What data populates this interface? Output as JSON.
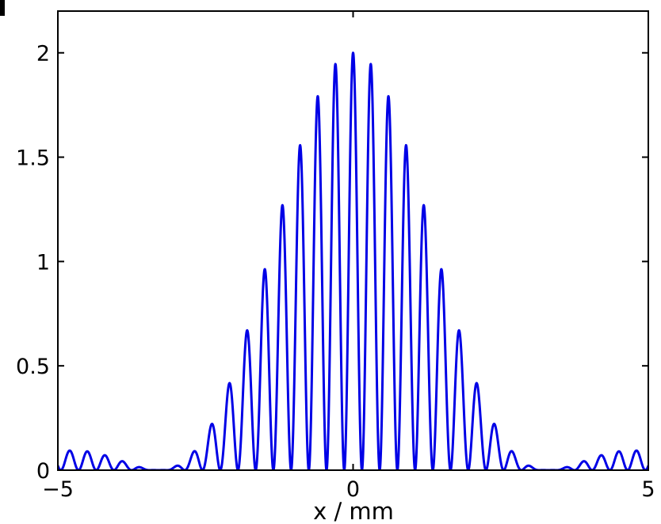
{
  "chart_data": {
    "type": "line",
    "title": "",
    "xlabel": "x / mm",
    "ylabel": "",
    "xlim": [
      -5,
      5
    ],
    "ylim": [
      0,
      2.2
    ],
    "grid": false,
    "legend": "none",
    "xticks": [
      -5,
      0,
      5
    ],
    "xtick_labels": [
      "−5",
      "0",
      "5"
    ],
    "yticks": [
      0,
      0.5,
      1,
      1.5,
      2
    ],
    "ytick_labels": [
      "0",
      "0.5",
      "1",
      "1.5",
      "2"
    ],
    "line_color": "#0000e6",
    "model": {
      "fringe_spacing_mm": 0.3,
      "envelope_first_zero_mm": 3.3,
      "peak_intensity": 2
    },
    "series": [
      {
        "x": [
          -5,
          -4.8,
          -4.5,
          -4.2,
          -3.9,
          -3.6,
          -3.3,
          -3.0,
          -2.7,
          -2.4,
          -2.1,
          -1.8,
          -1.5,
          -1.2,
          -0.9,
          -0.6,
          -0.3,
          0,
          0.3,
          0.6,
          0.9,
          1.2,
          1.5,
          1.8,
          2.1,
          2.4,
          2.7,
          3.0,
          3.3,
          3.6,
          3.9,
          4.2,
          4.5,
          4.8,
          5
        ],
        "y": [
          0.07,
          0.09,
          0.09,
          0.07,
          0.05,
          0.02,
          0.0,
          0.03,
          0.11,
          0.28,
          0.51,
          0.81,
          1.15,
          1.47,
          1.75,
          1.93,
          2.0,
          1.93,
          1.75,
          1.47,
          1.15,
          0.81,
          0.51,
          0.28,
          0.11,
          0.03,
          0.0,
          0.02,
          0.05,
          0.07,
          0.09,
          0.09,
          0.07,
          0.07,
          0.07
        ]
      }
    ]
  }
}
